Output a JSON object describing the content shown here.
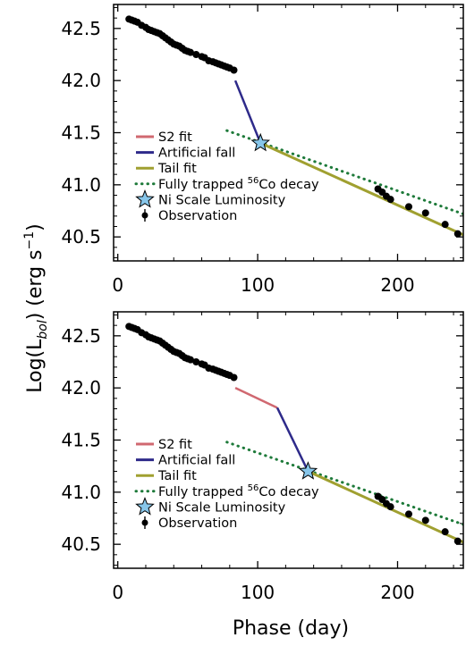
{
  "figure": {
    "xlabel": "Phase (day)",
    "ylabel_main": "Log(L",
    "ylabel_sub": "bol",
    "ylabel_tail": ") (erg s",
    "ylabel_sup": "−1",
    "ylabel_end": ")"
  },
  "legend": {
    "s2_fit": "S2 fit",
    "artificial_fall": "Artificial fall",
    "tail_fit": "Tail fit",
    "co_decay_pre": "Fully trapped ",
    "co_decay_sup": "56",
    "co_decay_post": "Co decay",
    "ni_scale": "Ni Scale Luminosity",
    "observation": "Observation"
  },
  "colors": {
    "s2_fit": "#d06870",
    "artificial_fall": "#2e2a8a",
    "tail_fit": "#a0a030",
    "co_decay": "#1e7a3a",
    "ni_star": "#87c6ea",
    "observation": "#000000"
  },
  "chart_data": [
    {
      "type": "line",
      "panel": "top",
      "xlim": [
        -3,
        247
      ],
      "ylim": [
        40.27,
        42.73
      ],
      "xticks": [
        0,
        100,
        200
      ],
      "yticks": [
        40.5,
        41.0,
        41.5,
        42.0,
        42.5
      ],
      "observations": [
        [
          8,
          42.59
        ],
        [
          10,
          42.58
        ],
        [
          12,
          42.57
        ],
        [
          14,
          42.56
        ],
        [
          17,
          42.53
        ],
        [
          20,
          42.51
        ],
        [
          22,
          42.49
        ],
        [
          24,
          42.48
        ],
        [
          26,
          42.47
        ],
        [
          28,
          42.46
        ],
        [
          30,
          42.45
        ],
        [
          32,
          42.43
        ],
        [
          34,
          42.41
        ],
        [
          36,
          42.39
        ],
        [
          38,
          42.37
        ],
        [
          40,
          42.35
        ],
        [
          42,
          42.34
        ],
        [
          44,
          42.33
        ],
        [
          46,
          42.31
        ],
        [
          48,
          42.29
        ],
        [
          50,
          42.28
        ],
        [
          52,
          42.27
        ],
        [
          56,
          42.25
        ],
        [
          60,
          42.23
        ],
        [
          62,
          42.22
        ],
        [
          65,
          42.19
        ],
        [
          68,
          42.18
        ],
        [
          70,
          42.17
        ],
        [
          72,
          42.16
        ],
        [
          74,
          42.15
        ],
        [
          76,
          42.14
        ],
        [
          78,
          42.13
        ],
        [
          80,
          42.12
        ],
        [
          83,
          42.1
        ],
        [
          186,
          40.96
        ],
        [
          189,
          40.93
        ],
        [
          192,
          40.89
        ],
        [
          195,
          40.86
        ],
        [
          208,
          40.79
        ],
        [
          220,
          40.73
        ],
        [
          234,
          40.62
        ],
        [
          243,
          40.53
        ]
      ],
      "s2_fit": [
        [
          84,
          42.09
        ],
        [
          84,
          42.09
        ]
      ],
      "artificial_fall": [
        [
          84,
          42.0
        ],
        [
          102,
          41.4
        ]
      ],
      "tail_fit": [
        [
          102,
          41.4
        ],
        [
          247,
          40.52
        ]
      ],
      "co_decay": [
        [
          78,
          41.52
        ],
        [
          247,
          40.72
        ]
      ],
      "ni_scale": [
        102,
        41.4
      ]
    },
    {
      "type": "line",
      "panel": "bottom",
      "xlim": [
        -3,
        247
      ],
      "ylim": [
        40.27,
        42.73
      ],
      "xticks": [
        0,
        100,
        200
      ],
      "yticks": [
        40.5,
        41.0,
        41.5,
        42.0,
        42.5
      ],
      "observations": [
        [
          8,
          42.59
        ],
        [
          10,
          42.58
        ],
        [
          12,
          42.57
        ],
        [
          14,
          42.56
        ],
        [
          17,
          42.53
        ],
        [
          20,
          42.51
        ],
        [
          22,
          42.49
        ],
        [
          24,
          42.48
        ],
        [
          26,
          42.47
        ],
        [
          28,
          42.46
        ],
        [
          30,
          42.45
        ],
        [
          32,
          42.43
        ],
        [
          34,
          42.41
        ],
        [
          36,
          42.39
        ],
        [
          38,
          42.37
        ],
        [
          40,
          42.35
        ],
        [
          42,
          42.34
        ],
        [
          44,
          42.33
        ],
        [
          46,
          42.31
        ],
        [
          48,
          42.29
        ],
        [
          50,
          42.28
        ],
        [
          52,
          42.27
        ],
        [
          56,
          42.25
        ],
        [
          60,
          42.23
        ],
        [
          62,
          42.22
        ],
        [
          65,
          42.19
        ],
        [
          68,
          42.18
        ],
        [
          70,
          42.17
        ],
        [
          72,
          42.16
        ],
        [
          74,
          42.15
        ],
        [
          76,
          42.14
        ],
        [
          78,
          42.13
        ],
        [
          80,
          42.12
        ],
        [
          83,
          42.1
        ],
        [
          186,
          40.96
        ],
        [
          189,
          40.93
        ],
        [
          192,
          40.89
        ],
        [
          195,
          40.86
        ],
        [
          208,
          40.79
        ],
        [
          220,
          40.73
        ],
        [
          234,
          40.62
        ],
        [
          243,
          40.53
        ]
      ],
      "s2_fit": [
        [
          84,
          42.0
        ],
        [
          114,
          41.81
        ]
      ],
      "artificial_fall": [
        [
          114,
          41.81
        ],
        [
          136,
          41.2
        ]
      ],
      "tail_fit": [
        [
          136,
          41.2
        ],
        [
          247,
          40.52
        ]
      ],
      "co_decay": [
        [
          78,
          41.48
        ],
        [
          247,
          40.69
        ]
      ],
      "ni_scale": [
        136,
        41.2
      ]
    }
  ]
}
